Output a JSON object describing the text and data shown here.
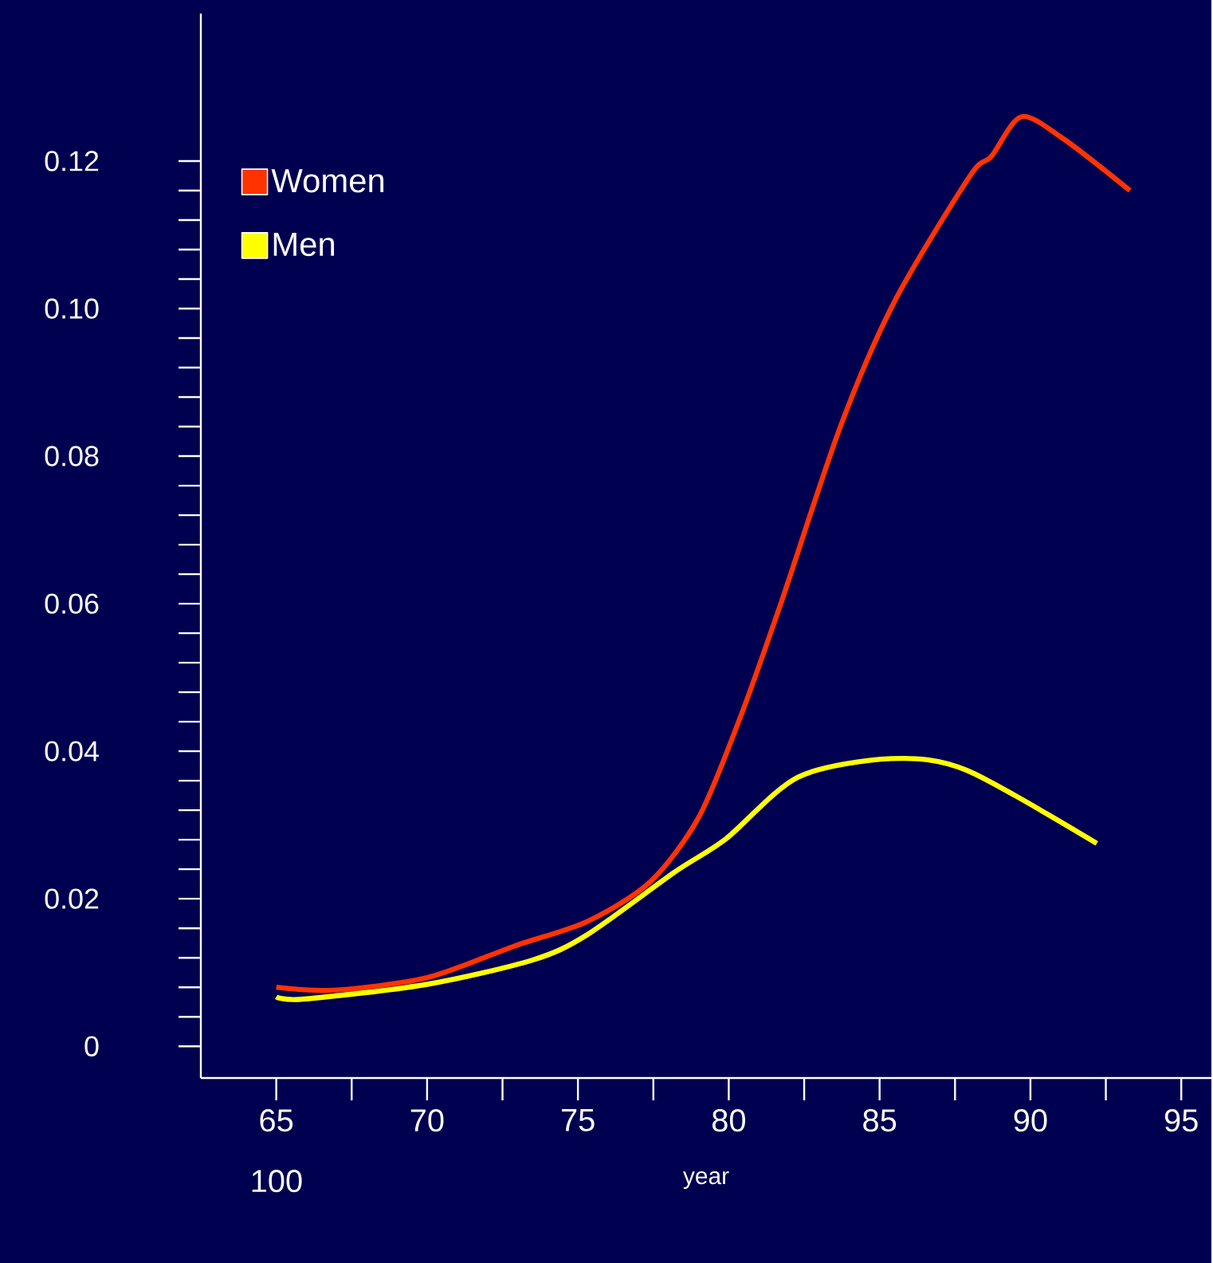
{
  "chart_data": {
    "type": "line",
    "xlabel": "year",
    "legend": "top left",
    "annotations": [
      "100"
    ],
    "xlim": [
      62.5,
      96
    ],
    "ylim": [
      -0.0043,
      0.14
    ],
    "xticks": [
      65,
      70,
      75,
      80,
      85,
      90,
      95
    ],
    "yticks": [
      0,
      0.02,
      0.04,
      0.06,
      0.08,
      {
        "value": 0.1,
        "label": "0.10"
      },
      0.12
    ],
    "series": [
      {
        "name": "Women",
        "color": "#ff3300",
        "x": [
          65,
          66.9,
          70,
          72.9,
          75.3,
          77.4,
          79,
          80.3,
          81.7,
          83.7,
          85.5,
          88,
          88.7,
          89.7,
          91.1,
          93.3
        ],
        "values": [
          0.008,
          0.0076,
          0.0093,
          0.0136,
          0.0169,
          0.0223,
          0.031,
          0.0437,
          0.0597,
          0.084,
          0.101,
          0.118,
          0.1206,
          0.126,
          0.123,
          0.116
        ]
      },
      {
        "name": "Men",
        "color": "#ffff00",
        "x": [
          65,
          65.9,
          70,
          73.5,
          75.3,
          78.2,
          79.9,
          82.3,
          85.4,
          87.9,
          92.2
        ],
        "values": [
          0.0067,
          0.0064,
          0.0084,
          0.0117,
          0.0151,
          0.0236,
          0.0281,
          0.0365,
          0.039,
          0.0374,
          0.0275
        ]
      }
    ]
  }
}
